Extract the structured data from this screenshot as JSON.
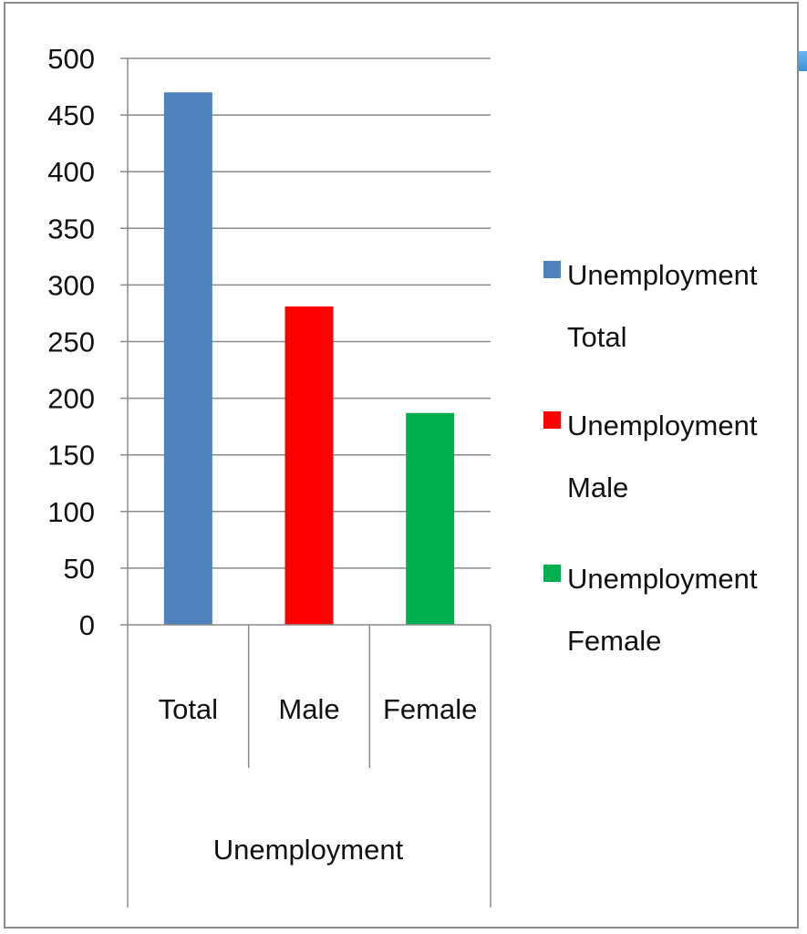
{
  "chart_data": {
    "type": "bar",
    "group_label": "Unemployment",
    "categories": [
      "Total",
      "Male",
      "Female"
    ],
    "values": [
      470,
      281,
      187
    ],
    "colors": [
      "#4f81bd",
      "#ff0000",
      "#00b050"
    ],
    "ylim": [
      0,
      500
    ],
    "yticks": [
      "0",
      "50",
      "100",
      "150",
      "200",
      "250",
      "300",
      "350",
      "400",
      "450",
      "500"
    ],
    "grid": true,
    "legend_position": "right",
    "legend": [
      {
        "line1": "Unemployment",
        "line2": "Total",
        "color": "#4f81bd"
      },
      {
        "line1": "Unemployment",
        "line2": "Male",
        "color": "#ff0000"
      },
      {
        "line1": "Unemployment",
        "line2": "Female",
        "color": "#00b050"
      }
    ]
  }
}
